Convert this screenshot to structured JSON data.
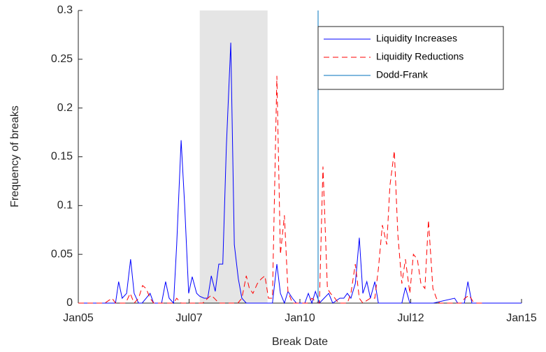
{
  "chart_data": {
    "type": "line",
    "xlabel": "Break Date",
    "ylabel": "Frequency of breaks",
    "xlim": [
      2005,
      2015
    ],
    "xticks": [
      {
        "value": 2005,
        "label": "Jan05"
      },
      {
        "value": 2007.5,
        "label": "Jul07"
      },
      {
        "value": 2010,
        "label": "Jan10"
      },
      {
        "value": 2012.5,
        "label": "Jul12"
      },
      {
        "value": 2015,
        "label": "Jan15"
      }
    ],
    "ylim": [
      0,
      0.3
    ],
    "yticks": [
      0,
      0.05,
      0.1,
      0.15,
      0.2,
      0.25,
      0.3
    ],
    "shaded_x": [
      2007.74,
      2009.27
    ],
    "shade_color": "#e5e5e5",
    "series": [
      {
        "name": "Liquidity Increases",
        "color": "#0000ff",
        "dash": false,
        "x": [
          2005,
          2005.84,
          2005.91,
          2005.99,
          2006.09,
          2006.18,
          2006.26,
          2006.36,
          2006.44,
          2006.53,
          2006.62,
          2006.7,
          2006.88,
          2006.97,
          2007.05,
          2007.15,
          2007.22,
          2007.32,
          2007.4,
          2007.49,
          2007.57,
          2007.67,
          2007.74,
          2007.84,
          2007.92,
          2008.0,
          2008.09,
          2008.17,
          2008.26,
          2008.34,
          2008.44,
          2008.52,
          2008.61,
          2008.69,
          2008.79,
          2009.38,
          2009.48,
          2009.56,
          2009.65,
          2009.73,
          2009.83,
          2009.92,
          2010.11,
          2010.19,
          2010.27,
          2010.35,
          2010.44,
          2010.65,
          2010.74,
          2010.9,
          2010.99,
          2011.07,
          2011.15,
          2011.25,
          2011.34,
          2011.42,
          2011.51,
          2011.59,
          2011.69,
          2011.77,
          2012.3,
          2012.38,
          2012.48,
          2013.01,
          2013.49,
          2013.56,
          2013.71,
          2013.79,
          2013.88,
          2015
        ],
        "values": [
          0,
          0,
          0.022,
          0.005,
          0.01,
          0.045,
          0.01,
          0,
          0,
          0.005,
          0.01,
          0,
          0,
          0.022,
          0.005,
          0,
          0.06,
          0.167,
          0.1,
          0.01,
          0.027,
          0.01,
          0.007,
          0.005,
          0.005,
          0.028,
          0.012,
          0.04,
          0.04,
          0.16,
          0.267,
          0.06,
          0.025,
          0.005,
          0,
          0,
          0.04,
          0.01,
          0,
          0.012,
          0.005,
          0,
          0,
          0.01,
          0,
          0.012,
          0,
          0.01,
          0,
          0.005,
          0.005,
          0.01,
          0.005,
          0.02,
          0.067,
          0.01,
          0.022,
          0.005,
          0.022,
          0,
          0,
          0.016,
          0,
          0,
          0.005,
          0,
          0,
          0.022,
          0,
          0
        ]
      },
      {
        "name": "Liquidity Reductions",
        "color": "#ff0000",
        "dash": true,
        "x": [
          2005,
          2005.6,
          2005.76,
          2005.84,
          2006.07,
          2006.17,
          2006.26,
          2006.36,
          2006.45,
          2006.53,
          2006.62,
          2006.7,
          2007.15,
          2007.22,
          2007.32,
          2007.81,
          2007.92,
          2008.0,
          2008.09,
          2008.17,
          2008.6,
          2008.69,
          2008.79,
          2008.86,
          2008.94,
          2009.04,
          2009.13,
          2009.21,
          2009.29,
          2009.38,
          2009.48,
          2009.56,
          2009.65,
          2009.73,
          2009.83,
          2010.17,
          2010.27,
          2010.35,
          2010.44,
          2010.52,
          2010.62,
          2010.69,
          2010.79,
          2010.87,
          2011.07,
          2011.15,
          2011.25,
          2011.34,
          2011.42,
          2011.59,
          2011.69,
          2011.77,
          2011.86,
          2011.96,
          2012.03,
          2012.13,
          2012.21,
          2012.3,
          2012.38,
          2012.48,
          2012.56,
          2012.65,
          2012.73,
          2012.82,
          2012.9,
          2013.0,
          2013.08,
          2013.15,
          2013.64,
          2013.72,
          2013.82,
          2013.9,
          2013.99,
          2014.12
        ],
        "values": [
          0,
          0,
          0.005,
          0,
          0,
          0.01,
          0,
          0.005,
          0.018,
          0.015,
          0.005,
          0,
          0,
          0.005,
          0,
          0,
          0.005,
          0.008,
          0.004,
          0,
          0,
          0.005,
          0.028,
          0.015,
          0.01,
          0.02,
          0.025,
          0.028,
          0.005,
          0.005,
          0.233,
          0.05,
          0.09,
          0.012,
          0,
          0,
          0.005,
          0.002,
          0,
          0.14,
          0.015,
          0.01,
          0.005,
          0,
          0,
          0.01,
          0.04,
          0.005,
          0,
          0.005,
          0.005,
          0.035,
          0.08,
          0.06,
          0.12,
          0.156,
          0.07,
          0.02,
          0.045,
          0.01,
          0.05,
          0.045,
          0.02,
          0.015,
          0.085,
          0.015,
          0.005,
          0,
          0,
          0.005,
          0.008,
          0.002,
          0,
          0
        ]
      }
    ],
    "events": [
      {
        "name": "Dodd-Frank",
        "x": 2010.41,
        "color": "#0072bd"
      }
    ]
  }
}
